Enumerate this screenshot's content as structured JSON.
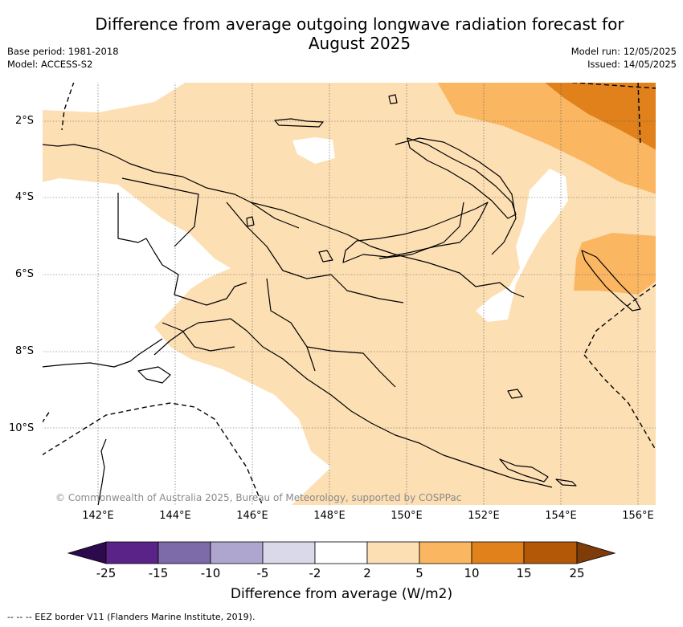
{
  "title_line1": "Difference from average outgoing longwave radiation forecast for",
  "title_line2": "August 2025",
  "meta_left": {
    "base_period": "Base period: 1981-2018",
    "model": "Model: ACCESS-S2"
  },
  "meta_right": {
    "model_run": "Model run: 12/05/2025",
    "issued": "Issued: 14/05/2025"
  },
  "map": {
    "lat_labels": [
      "2°S",
      "4°S",
      "6°S",
      "8°S",
      "10°S"
    ],
    "lon_labels": [
      "142°E",
      "144°E",
      "146°E",
      "148°E",
      "150°E",
      "152°E",
      "154°E",
      "156°E"
    ],
    "copyright": "© Commonwealth of Australia 2025, Bureau of Meteorology, supported by COSPPac",
    "colors": {
      "light_orange": "#fddfb4",
      "mid_orange": "#fbb662",
      "dark_orange": "#e0811b",
      "white": "#ffffff"
    }
  },
  "legend": {
    "title": "Difference from average (W/m2)",
    "ticks": [
      "-25",
      "-15",
      "-10",
      "-5",
      "-2",
      "2",
      "5",
      "10",
      "15",
      "25"
    ],
    "colors": [
      "#2d0a4e",
      "#5a2387",
      "#7d6aa8",
      "#afa6d0",
      "#d9d9ea",
      "#ffffff",
      "#fddfb4",
      "#fbb662",
      "#e0811b",
      "#b35806",
      "#7f3b08"
    ]
  },
  "footnote": "--  --  -- EEZ border V11 (Flanders Marine Institute, 2019)."
}
